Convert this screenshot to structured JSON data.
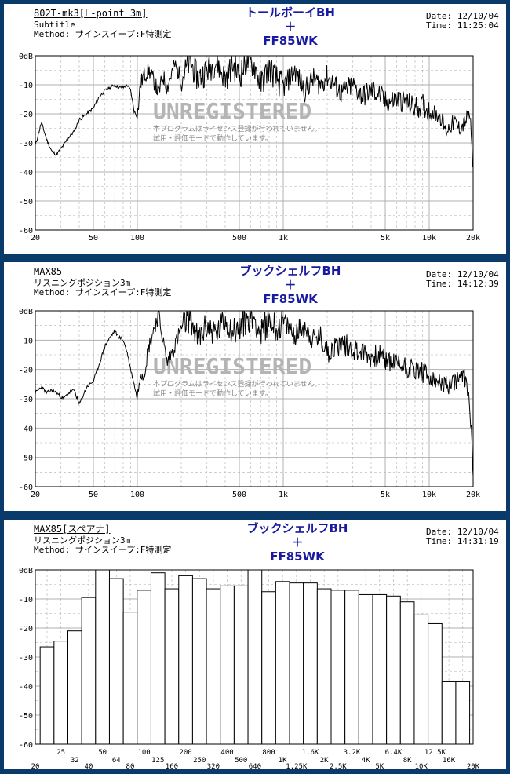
{
  "colors": {
    "background": "#0a3a6a",
    "title": "#1a1aa0",
    "grid": "#b0b0b0",
    "trace": "#000000",
    "watermark": "#b4b4b4"
  },
  "watermark": {
    "title": "UNREGISTERED",
    "line1": "本プログラムはライセンス登録が行われていません。",
    "line2": "試用・評価モードで動作しています。"
  },
  "panels": [
    {
      "name": "802T-mk3[L-point 3m]",
      "subtitle": "Subtitle",
      "method": "Method: サインスイープ:F特測定",
      "date": "Date: 12/10/04",
      "time": "Time: 11:25:04",
      "title_lines": [
        "トールボーイBH",
        "＋",
        "FF85WK"
      ]
    },
    {
      "name": "MAX85",
      "subtitle": "リスニングポジション3m",
      "method": "Method: サインスイープ:F特測定",
      "date": "Date: 12/10/04",
      "time": "Time: 14:12:39",
      "title_lines": [
        "ブックシェルフBH",
        "＋",
        "FF85WK"
      ]
    },
    {
      "name": "MAX85[スペアナ]",
      "subtitle": "リスニングポジション3m",
      "method": "Method: サインスイープ:F特測定",
      "date": "Date: 12/10/04",
      "time": "Time: 14:31:19",
      "title_lines": [
        "ブックシェルフBH",
        "＋",
        "FF85WK"
      ]
    }
  ],
  "chart_data": [
    {
      "type": "line",
      "yunit": "dB",
      "xscale": "log",
      "xlim": [
        20,
        20000
      ],
      "ylim": [
        -60,
        0
      ],
      "yticks": [
        "0dB",
        "-10",
        "-20",
        "-30",
        "-40",
        "-50",
        "-60"
      ],
      "xticks": [
        {
          "v": 20,
          "t": "20"
        },
        {
          "v": 50,
          "t": "50"
        },
        {
          "v": 100,
          "t": "100"
        },
        {
          "v": 500,
          "t": "500"
        },
        {
          "v": 1000,
          "t": "1k"
        },
        {
          "v": 5000,
          "t": "5k"
        },
        {
          "v": 10000,
          "t": "10k"
        },
        {
          "v": 20000,
          "t": "20k"
        }
      ],
      "grid": true,
      "seed": 11,
      "series": [
        {
          "x": [
            20,
            22,
            24,
            26,
            28,
            31,
            34,
            37,
            40,
            45,
            50,
            55,
            60,
            65,
            70,
            75,
            80,
            85,
            90,
            95,
            100,
            105,
            110,
            120,
            130,
            140,
            150,
            160,
            180,
            200,
            230,
            260,
            300,
            350,
            400,
            450,
            500,
            560,
            630,
            700,
            800,
            900,
            1000,
            1200,
            1400,
            1600,
            1800,
            2000,
            2500,
            3000,
            3500,
            4000,
            4500,
            5000,
            6000,
            7000,
            8000,
            9000,
            10000,
            11000,
            12000,
            13000,
            14000,
            15000,
            16000,
            17000,
            18000,
            19000,
            20000
          ],
          "y": [
            -31,
            -23,
            -29,
            -33,
            -34,
            -31,
            -28,
            -26,
            -22,
            -20,
            -18,
            -14,
            -12,
            -11,
            -10,
            -11,
            -11,
            -10,
            -12,
            -19,
            -21,
            -10,
            -7,
            -5,
            -9,
            -13,
            -7,
            -11,
            -3,
            -8,
            -2,
            -8,
            -5,
            -2,
            -8,
            -3,
            -7,
            -2,
            -3,
            -10,
            -4,
            -8,
            -11,
            -5,
            -12,
            -8,
            -10,
            -7,
            -13,
            -10,
            -14,
            -12,
            -13,
            -16,
            -15,
            -16,
            -18,
            -17,
            -19,
            -20,
            -21,
            -26,
            -24,
            -23,
            -25,
            -24,
            -22,
            -20,
            -40
          ]
        }
      ]
    },
    {
      "type": "line",
      "yunit": "dB",
      "xscale": "log",
      "xlim": [
        20,
        20000
      ],
      "ylim": [
        -60,
        0
      ],
      "yticks": [
        "0dB",
        "-10",
        "-20",
        "-30",
        "-40",
        "-50",
        "-60"
      ],
      "xticks": [
        {
          "v": 20,
          "t": "20"
        },
        {
          "v": 50,
          "t": "50"
        },
        {
          "v": 100,
          "t": "100"
        },
        {
          "v": 500,
          "t": "500"
        },
        {
          "v": 1000,
          "t": "1k"
        },
        {
          "v": 5000,
          "t": "5k"
        },
        {
          "v": 10000,
          "t": "10k"
        },
        {
          "v": 20000,
          "t": "20k"
        }
      ],
      "grid": true,
      "seed": 23,
      "series": [
        {
          "x": [
            20,
            22,
            24,
            26,
            28,
            31,
            34,
            37,
            40,
            45,
            50,
            55,
            60,
            65,
            70,
            75,
            80,
            85,
            90,
            95,
            100,
            105,
            110,
            120,
            130,
            140,
            150,
            160,
            180,
            200,
            230,
            260,
            300,
            350,
            400,
            450,
            500,
            560,
            630,
            700,
            800,
            900,
            1000,
            1200,
            1400,
            1600,
            1800,
            2000,
            2500,
            3000,
            3500,
            4000,
            4500,
            5000,
            6000,
            7000,
            8000,
            9000,
            10000,
            11000,
            12000,
            13000,
            14000,
            15000,
            16000,
            17000,
            18000,
            19000,
            20000
          ],
          "y": [
            -28,
            -26,
            -28,
            -27,
            -28,
            -30,
            -28,
            -27,
            -32,
            -26,
            -24,
            -18,
            -12,
            -9,
            -7,
            -9,
            -10,
            -14,
            -20,
            -25,
            -30,
            -20,
            -22,
            -12,
            -6,
            -1,
            -10,
            -18,
            -12,
            -6,
            -2,
            -10,
            -5,
            -8,
            -3,
            -7,
            -6,
            -3,
            -2,
            -8,
            -3,
            -6,
            -4,
            -8,
            -5,
            -10,
            -9,
            -14,
            -11,
            -13,
            -14,
            -16,
            -15,
            -17,
            -18,
            -19,
            -20,
            -21,
            -23,
            -24,
            -25,
            -25,
            -26,
            -24,
            -23,
            -22,
            -24,
            -32,
            -54
          ]
        }
      ]
    },
    {
      "type": "bar",
      "yunit": "dB",
      "ylim": [
        -60,
        0
      ],
      "yticks": [
        "0dB",
        "-10",
        "-20",
        "-30",
        "-40",
        "-50",
        "-60"
      ],
      "grid": true,
      "categories": [
        "20",
        "25",
        "32",
        "40",
        "50",
        "64",
        "80",
        "100",
        "125",
        "160",
        "200",
        "250",
        "320",
        "400",
        "500",
        "640",
        "800",
        "1K",
        "1.25K",
        "1.6K",
        "2K",
        "2.5K",
        "3.2K",
        "4K",
        "5K",
        "6.4K",
        "8K",
        "10K",
        "12.5K",
        "16K",
        "20K"
      ],
      "xticks_upper": [
        "25",
        "50",
        "100",
        "200",
        "400",
        "800",
        "1.6K",
        "3.2K",
        "6.4K",
        "12.5K"
      ],
      "xticks_lower": [
        "32",
        "64",
        "125",
        "250",
        "500",
        "1K",
        "2K",
        "4K",
        "8K",
        "16K"
      ],
      "xticks_bottom": [
        "20",
        "40",
        "80",
        "160",
        "320",
        "640",
        "1.25K",
        "2.5K",
        "5K",
        "10K",
        "20K"
      ],
      "values": [
        -26.5,
        -24.5,
        -21,
        -9.5,
        0,
        -3,
        -14.5,
        -7,
        -1,
        -6.5,
        -2,
        -3,
        -6.5,
        -5.5,
        -5.5,
        0,
        -7.5,
        -4,
        -4.5,
        -4.5,
        -6.5,
        -7,
        -7,
        -8.5,
        -8.5,
        -9,
        -11,
        -15.5,
        -18.5,
        -38.5,
        -38.5
      ]
    }
  ]
}
